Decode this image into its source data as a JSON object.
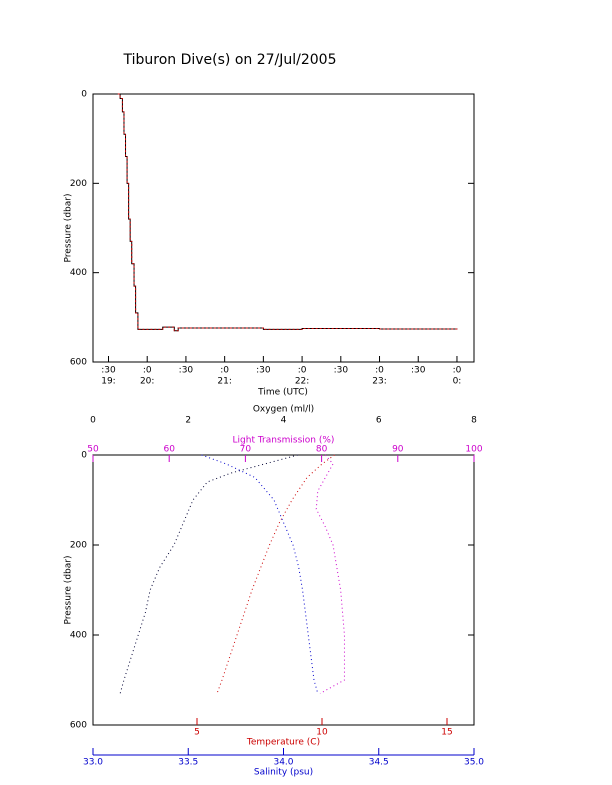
{
  "chart_data": [
    {
      "type": "line",
      "title": "Tiburon Dive(s) on 27/Jul/2005",
      "x_label": "Time (UTC)",
      "y_label": "Pressure (dbar)",
      "xlim": [
        19.3,
        24.22
      ],
      "ylim": [
        0,
        600
      ],
      "y_inverted": true,
      "xticks": [
        {
          "value": 19.5,
          "label": ":30"
        },
        {
          "value": 20,
          "label": ":0"
        },
        {
          "value": 20.5,
          "label": ":30"
        },
        {
          "value": 21,
          "label": ":0"
        },
        {
          "value": 21.5,
          "label": ":30"
        },
        {
          "value": 22,
          "label": ":0"
        },
        {
          "value": 22.5,
          "label": ":30"
        },
        {
          "value": 23,
          "label": ":0"
        },
        {
          "value": 23.5,
          "label": ":30"
        },
        {
          "value": 24,
          "label": ":0"
        }
      ],
      "xticks2": [
        {
          "value": 19.5,
          "label": "19:"
        },
        {
          "value": 20,
          "label": "20:"
        },
        {
          "value": 21,
          "label": "21:"
        },
        {
          "value": 22,
          "label": "22:"
        },
        {
          "value": 23,
          "label": "23:"
        },
        {
          "value": 24,
          "label": "0:"
        }
      ],
      "yticks": [
        0,
        200,
        400,
        600
      ],
      "x": [
        19.62,
        19.65,
        19.68,
        19.7,
        19.72,
        19.74,
        19.76,
        19.78,
        19.8,
        19.83,
        19.85,
        19.88,
        20.0,
        20.2,
        20.35,
        20.4,
        21.0,
        21.5,
        22.0,
        23.0,
        24.0
      ],
      "series": [
        {
          "color": "#cc0000",
          "values": [
            0,
            10,
            40,
            90,
            140,
            200,
            280,
            330,
            380,
            430,
            490,
            527,
            527,
            522,
            530,
            524,
            524,
            527,
            525,
            526,
            525
          ]
        }
      ]
    },
    {
      "type": "profile",
      "y_label": "Pressure (dbar)",
      "ylim": [
        0,
        600
      ],
      "y_inverted": true,
      "yticks": [
        0,
        200,
        400,
        600
      ],
      "axes": [
        {
          "label": "Oxygen (ml/l)",
          "color": "#000000",
          "position": "top",
          "lim": [
            0,
            8
          ],
          "ticks": [
            0,
            2,
            4,
            6,
            8
          ]
        },
        {
          "label": "Light Transmission (%)",
          "color": "#cc00cc",
          "position": "top",
          "lim": [
            50,
            100
          ],
          "ticks": [
            50,
            60,
            70,
            80,
            90,
            100
          ]
        },
        {
          "label": "Temperature (C)",
          "color": "#cc0000",
          "position": "bottom",
          "lim": [
            0.84,
            16.08
          ],
          "ticks": [
            5,
            10,
            15
          ]
        },
        {
          "label": "Salinity (psu)",
          "color": "#0000cc",
          "position": "bottom",
          "lim": [
            33.0,
            35.0
          ],
          "ticks": [
            {
              "value": 33.0,
              "label": "33.0"
            },
            {
              "value": 33.5,
              "label": "33.5"
            },
            {
              "value": 34.0,
              "label": "34.0"
            },
            {
              "value": 34.5,
              "label": "34.5"
            },
            {
              "value": 35.0,
              "label": "35.0"
            }
          ]
        }
      ],
      "series": [
        {
          "axis": 0,
          "color": "#000033",
          "pressure": [
            0,
            20,
            40,
            60,
            100,
            150,
            200,
            250,
            300,
            350,
            400,
            450,
            500,
            530
          ],
          "values": [
            4.3,
            3.6,
            2.9,
            2.4,
            2.1,
            1.9,
            1.7,
            1.4,
            1.2,
            1.1,
            0.95,
            0.8,
            0.65,
            0.57
          ]
        },
        {
          "axis": 1,
          "color": "#cc00cc",
          "pressure": [
            0,
            20,
            50,
            80,
            120,
            160,
            200,
            300,
            400,
            500,
            530
          ],
          "values": [
            80.5,
            81.5,
            80.5,
            79.5,
            79.3,
            80.5,
            81.5,
            82.5,
            83,
            83,
            79.8
          ]
        },
        {
          "axis": 2,
          "color": "#cc0000",
          "pressure": [
            0,
            20,
            50,
            100,
            150,
            200,
            300,
            400,
            500,
            530
          ],
          "values": [
            10.5,
            10.0,
            9.4,
            8.8,
            8.3,
            7.9,
            7.2,
            6.6,
            6.0,
            5.8
          ]
        },
        {
          "axis": 3,
          "color": "#0000cc",
          "pressure": [
            0,
            20,
            50,
            100,
            150,
            200,
            250,
            300,
            400,
            500,
            530
          ],
          "values": [
            33.57,
            33.7,
            33.85,
            33.95,
            34.0,
            34.05,
            34.08,
            34.1,
            34.13,
            34.16,
            34.18
          ]
        }
      ]
    }
  ]
}
